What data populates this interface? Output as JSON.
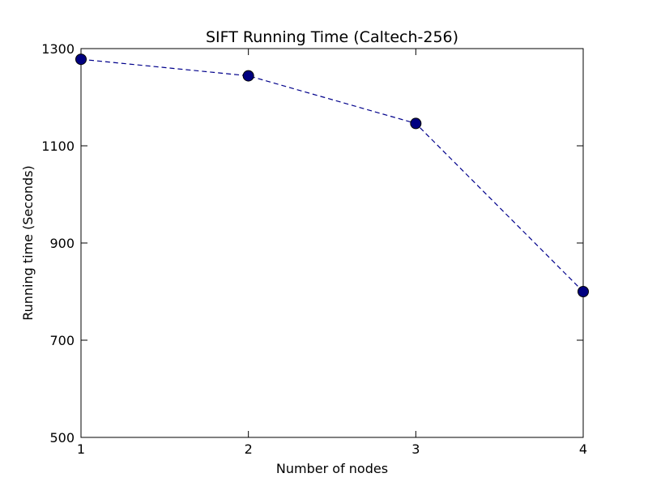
{
  "chart_data": {
    "type": "line",
    "title": "SIFT Running Time (Caltech-256)",
    "xlabel": "Number of nodes",
    "ylabel": "Running time (Seconds)",
    "x": [
      1,
      2,
      3,
      4
    ],
    "xticks": [
      "1",
      "2",
      "3",
      "4"
    ],
    "xlim": [
      1,
      4
    ],
    "yticks": [
      "500",
      "700",
      "900",
      "1100",
      "1300"
    ],
    "ylim": [
      500,
      1300
    ],
    "series": [
      {
        "values": [
          1278,
          1244,
          1146,
          800
        ]
      }
    ],
    "line_style": "dashed",
    "marker": "circle",
    "line_color": "#00008b",
    "marker_color": "#000080",
    "grid": false,
    "legend": "none"
  }
}
